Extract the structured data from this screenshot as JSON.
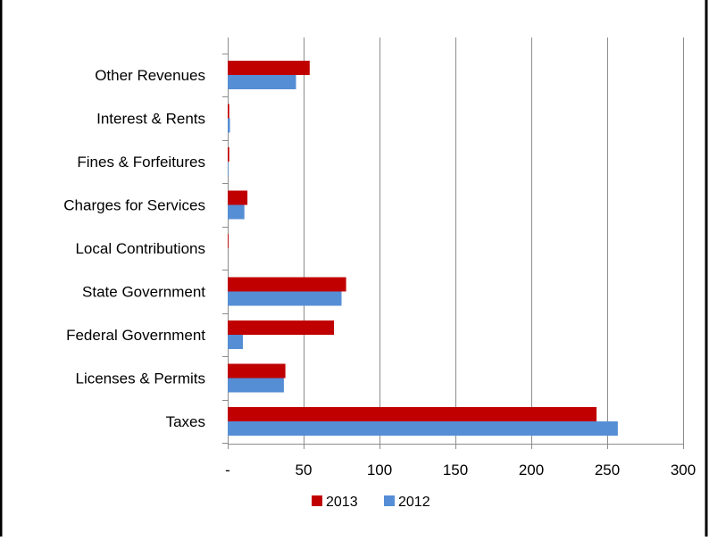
{
  "chart_data": {
    "type": "bar",
    "orientation": "horizontal",
    "categories": [
      "Taxes",
      "Licenses & Permits",
      "Federal Government",
      "State Government",
      "Local Contributions",
      "Charges for Services",
      "Fines & Forfeitures",
      "Interest & Rents",
      "Other Revenues"
    ],
    "series": [
      {
        "name": "2013",
        "color": "#c00000",
        "values": [
          243,
          38,
          70,
          78,
          0.5,
          13,
          1,
          1,
          54
        ]
      },
      {
        "name": "2012",
        "color": "#558ed5",
        "values": [
          257,
          37,
          10,
          75,
          0,
          11,
          0.4,
          1.5,
          45
        ]
      }
    ],
    "xlim": [
      0,
      300
    ],
    "x_ticks": [
      "-",
      "50",
      "100",
      "150",
      "200",
      "250",
      "300"
    ],
    "x_tick_values": [
      0,
      50,
      100,
      150,
      200,
      250,
      300
    ],
    "grid": "vertical",
    "legend_position": "bottom"
  }
}
